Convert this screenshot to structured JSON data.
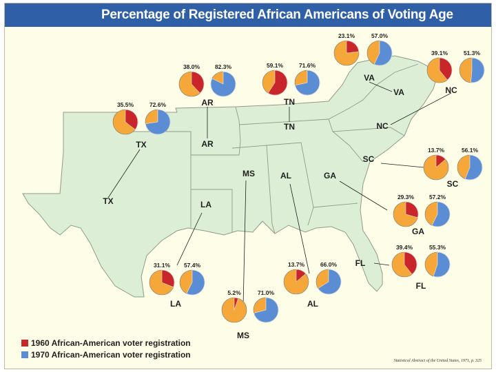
{
  "title": "Percentage of Registered African Americans of Voting Age",
  "colors": {
    "y1960": "#c8262b",
    "y1970": "#5b8dd4",
    "remainder": "#f5a73a",
    "land": "#dcefd6",
    "border": "#8c9c8a",
    "banner": "#2f5fa7"
  },
  "legend": {
    "y1960_label": "1960 African-American voter registration",
    "y1970_label": "1970 African-American voter registration"
  },
  "source": "Statistical Abstract of the United States, 1971, p. 325",
  "chart_data": {
    "type": "pie",
    "series_names": [
      "1960",
      "1970"
    ],
    "states": [
      {
        "id": "TX",
        "label": "TX",
        "map_label": "TX",
        "v1960": 35.5,
        "v1960_label": "35.5%",
        "v1970": 72.6,
        "v1970_label": "72.6%"
      },
      {
        "id": "AR",
        "label": "AR",
        "map_label": "AR",
        "v1960": 38.0,
        "v1960_label": "38.0%",
        "v1970": 82.3,
        "v1970_label": "82.3%"
      },
      {
        "id": "TN",
        "label": "TN",
        "map_label": "TN",
        "v1960": 59.1,
        "v1960_label": "59.1%",
        "v1970": 71.6,
        "v1970_label": "71.6%"
      },
      {
        "id": "VA",
        "label": "VA",
        "map_label": "VA",
        "v1960": 23.1,
        "v1960_label": "23.1%",
        "v1970": 57.0,
        "v1970_label": "57.0%"
      },
      {
        "id": "NC",
        "label": "NC",
        "map_label": "NC",
        "v1960": 39.1,
        "v1960_label": "39.1%",
        "v1970": 51.3,
        "v1970_label": "51.3%"
      },
      {
        "id": "SC",
        "label": "SC",
        "map_label": "SC",
        "v1960": 13.7,
        "v1960_label": "13.7%",
        "v1970": 56.1,
        "v1970_label": "56.1%"
      },
      {
        "id": "GA",
        "label": "GA",
        "map_label": "GA",
        "v1960": 29.3,
        "v1960_label": "29.3%",
        "v1970": 57.2,
        "v1970_label": "57.2%"
      },
      {
        "id": "FL",
        "label": "FL",
        "map_label": "FL",
        "v1960": 39.4,
        "v1960_label": "39.4%",
        "v1970": 55.3,
        "v1970_label": "55.3%"
      },
      {
        "id": "AL",
        "label": "AL",
        "map_label": "AL",
        "v1960": 13.7,
        "v1960_label": "13.7%",
        "v1970": 66.0,
        "v1970_label": "66.0%"
      },
      {
        "id": "MS",
        "label": "MS",
        "map_label": "MS",
        "v1960": 5.2,
        "v1960_label": "5.2%",
        "v1970": 71.0,
        "v1970_label": "71.0%"
      },
      {
        "id": "LA",
        "label": "LA",
        "map_label": "LA",
        "v1960": 31.1,
        "v1960_label": "31.1%",
        "v1970": 57.4,
        "v1970_label": "57.4%"
      }
    ]
  }
}
